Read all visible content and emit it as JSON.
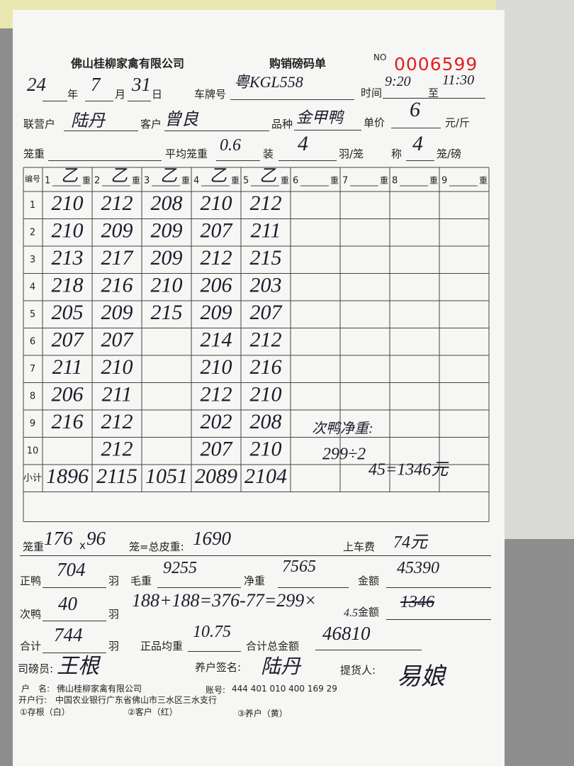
{
  "header": {
    "company": "佛山桂柳家禽有限公司",
    "title": "购销磅码单",
    "no_label": "NO",
    "no": "0006599"
  },
  "date": {
    "year": "24",
    "year_label": "年",
    "month": "7",
    "month_label": "月",
    "day": "31",
    "day_label": "日"
  },
  "plate": {
    "label": "车牌号",
    "value": "粤KGL558"
  },
  "time": {
    "label": "时间",
    "from": "9:20",
    "to_label": "至",
    "to": "11:30"
  },
  "partner": {
    "label": "联营户",
    "value": "陆丹"
  },
  "customer": {
    "label": "客户",
    "value": "曾良"
  },
  "variety": {
    "label": "品种",
    "value": "金甲鸭"
  },
  "price": {
    "label": "单价",
    "value": "6",
    "unit": "元/斤"
  },
  "cage": {
    "label": "笼重",
    "avg_label": "平均笼重",
    "avg": "0.6",
    "load_label": "装",
    "load": "4",
    "load_unit": "羽/笼",
    "weigh_label": "称",
    "weigh": "4",
    "weigh_unit": "笼/磅"
  },
  "table": {
    "header_label": "编号",
    "weight_label": "重",
    "columns": [
      {
        "number": "1",
        "mark": "乙"
      },
      {
        "number": "2",
        "mark": "乙"
      },
      {
        "number": "3",
        "mark": "乙"
      },
      {
        "number": "4",
        "mark": "乙"
      },
      {
        "number": "5",
        "mark": "乙"
      },
      {
        "number": "6"
      },
      {
        "number": "7"
      },
      {
        "number": "8"
      },
      {
        "number": "9"
      }
    ],
    "rows": [
      {
        "label": "1",
        "cells": [
          210,
          212,
          208,
          210,
          212
        ]
      },
      {
        "label": "2",
        "cells": [
          210,
          209,
          209,
          207,
          211
        ]
      },
      {
        "label": "3",
        "cells": [
          213,
          217,
          209,
          212,
          215
        ]
      },
      {
        "label": "4",
        "cells": [
          218,
          216,
          210,
          206,
          203
        ]
      },
      {
        "label": "5",
        "cells": [
          205,
          209,
          215,
          209,
          207
        ]
      },
      {
        "label": "6",
        "cells": [
          207,
          207,
          null,
          214,
          212
        ]
      },
      {
        "label": "7",
        "cells": [
          211,
          210,
          null,
          210,
          216
        ]
      },
      {
        "label": "8",
        "cells": [
          206,
          211,
          null,
          212,
          210
        ]
      },
      {
        "label": "9",
        "cells": [
          216,
          212,
          null,
          202,
          208
        ]
      },
      {
        "label": "10",
        "cells": [
          null,
          212,
          null,
          207,
          210
        ]
      },
      {
        "label": "小计",
        "cells": [
          1896,
          2115,
          1051,
          2089,
          2104
        ]
      }
    ],
    "notes": [
      "次鸭净重:",
      "299÷2",
      "45=1346元"
    ]
  },
  "totals": {
    "cage_label": "笼重",
    "cage_weight": "176",
    "times": "x",
    "cage_count": "96",
    "tare_label": "笼=总皮重:",
    "tare": "1690",
    "loading_fee_label": "上车费",
    "loading_fee": "74元",
    "main_label": "正鸭",
    "main_count": "704",
    "bird_unit": "羽",
    "gross_label": "毛重",
    "gross": "9255",
    "net_label": "净重",
    "net": "7565",
    "main_amount_label": "金额",
    "main_amount": "45390",
    "sub_label": "次鸭",
    "sub_count": "40",
    "sub_calc": "188+188=376-77=299×",
    "sub_rate": "4.5",
    "sub_amount_label": "金额",
    "sub_amount": "1346",
    "total_label": "合计",
    "total_count": "744",
    "avg_label": "正品均重",
    "avg": "10.75",
    "total_amount_label": "合计总金额",
    "total_amount": "46810"
  },
  "signatures": {
    "weigher_label": "司磅员:",
    "weigher": "王根",
    "farmer_label": "养户签名:",
    "farmer": "陆丹",
    "picker_label": "提货人:",
    "picker": "易娘"
  },
  "footer": {
    "account_name_label": "户　名:",
    "account_name": "佛山桂柳家禽有限公司",
    "account_no_label": "账号:",
    "account_no": "444 401 010 400 169 29",
    "bank_label": "开户行:",
    "bank": "中国农业银行广东省佛山市三水区三水支行",
    "copy1": "①存根（白）",
    "copy2": "②客户（红）",
    "copy3": "③养户（黄）"
  }
}
